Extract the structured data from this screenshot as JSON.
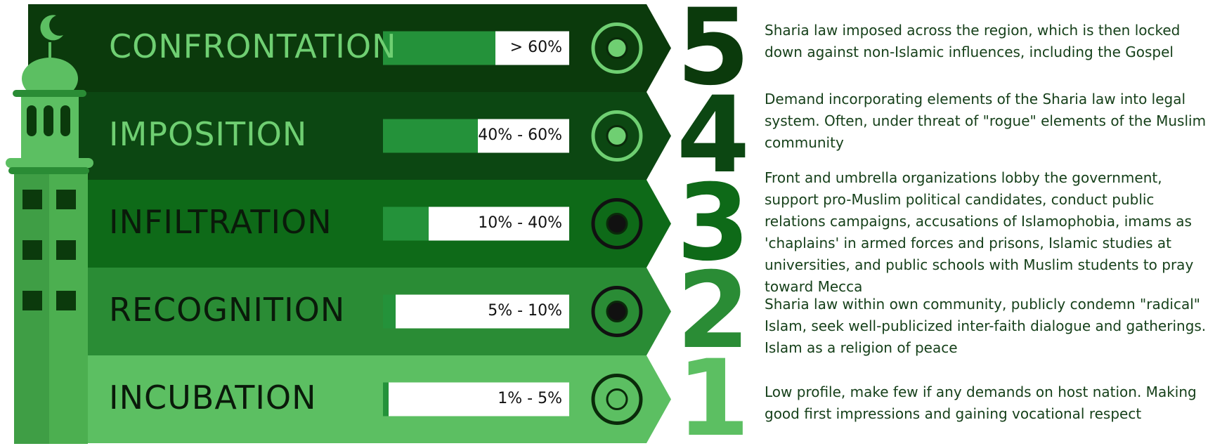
{
  "stages": [
    {
      "number": "5",
      "name": "CONFRONTATION",
      "range": "> 60%",
      "description": "Sharia law imposed across the region, which is then locked down against non-Islamic influences, including the Gospel"
    },
    {
      "number": "4",
      "name": "IMPOSITION",
      "range": "40% - 60%",
      "description": "Demand incorporating elements of the Sharia law into legal system. Often, under threat of \"rogue\" elements of the Muslim community"
    },
    {
      "number": "3",
      "name": "INFILTRATION",
      "range": "10% - 40%",
      "description": "Front and umbrella organizations lobby the government, support pro-Muslim political candidates, conduct public relations campaigns, accusations of Islamophobia, imams as 'chaplains' in armed forces and prisons, Islamic studies at universities, and public schools with Muslim students to pray toward Mecca"
    },
    {
      "number": "2",
      "name": "RECOGNITION",
      "range": "5% - 10%",
      "description": "Sharia law within own community, publicly condemn \"radical\" Islam, seek well-publicized inter-faith dialogue and gatherings. Islam as a religion of peace"
    },
    {
      "number": "1",
      "name": "INCUBATION",
      "range": "1% - 5%",
      "description": "Low profile, make few if any demands on host nation. Making good first impressions and gaining vocational respect"
    }
  ]
}
